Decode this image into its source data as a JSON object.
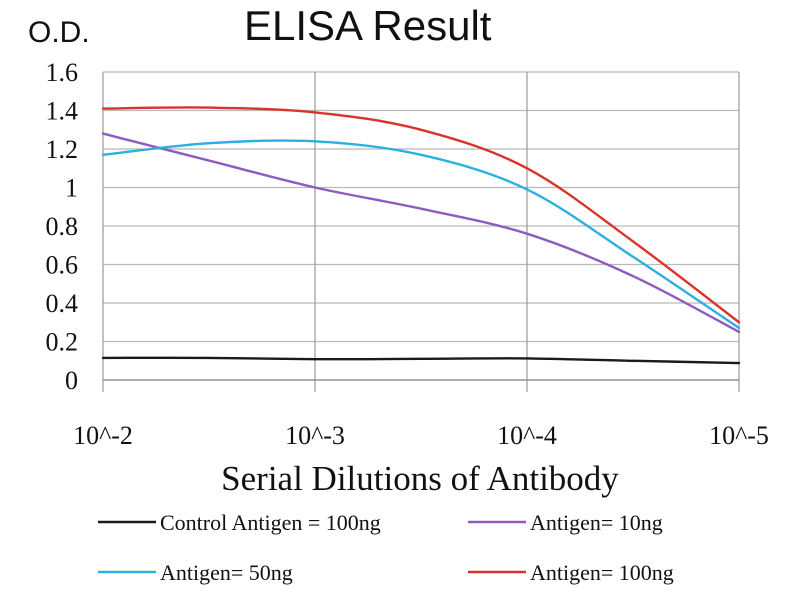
{
  "chart_data": {
    "type": "line",
    "title": "ELISA Result",
    "ylabel": "O.D.",
    "xlabel": "Serial Dilutions of Antibody",
    "categories": [
      "10^-2",
      "10^-3",
      "10^-4",
      "10^-5"
    ],
    "yticks": [
      "0",
      "0.2",
      "0.4",
      "0.6",
      "0.8",
      "1",
      "1.2",
      "1.4",
      "1.6"
    ],
    "ylim": [
      0,
      1.6
    ],
    "grid": true,
    "legend_position": "bottom",
    "series": [
      {
        "name": "Control Antigen = 100ng",
        "color": "#1a1a1a",
        "points": [
          [
            0,
            0.115
          ],
          [
            0.5,
            0.115
          ],
          [
            1,
            0.108
          ],
          [
            1.5,
            0.11
          ],
          [
            2,
            0.112
          ],
          [
            2.5,
            0.1
          ],
          [
            3,
            0.088
          ]
        ]
      },
      {
        "name": "Antigen= 10ng",
        "color": "#8e5bc2",
        "points": [
          [
            0,
            1.28
          ],
          [
            0.5,
            1.14
          ],
          [
            1,
            1.0
          ],
          [
            1.5,
            0.89
          ],
          [
            2,
            0.76
          ],
          [
            2.5,
            0.54
          ],
          [
            3,
            0.25
          ]
        ]
      },
      {
        "name": "Antigen= 50ng",
        "color": "#2bb1e0",
        "points": [
          [
            0,
            1.17
          ],
          [
            0.5,
            1.23
          ],
          [
            1,
            1.24
          ],
          [
            1.5,
            1.17
          ],
          [
            2,
            0.99
          ],
          [
            2.5,
            0.64
          ],
          [
            3,
            0.27
          ]
        ]
      },
      {
        "name": "Antigen= 100ng",
        "color": "#d9342b",
        "points": [
          [
            0,
            1.41
          ],
          [
            0.5,
            1.415
          ],
          [
            1,
            1.39
          ],
          [
            1.5,
            1.3
          ],
          [
            2,
            1.1
          ],
          [
            2.5,
            0.72
          ],
          [
            3,
            0.3
          ]
        ]
      }
    ]
  }
}
